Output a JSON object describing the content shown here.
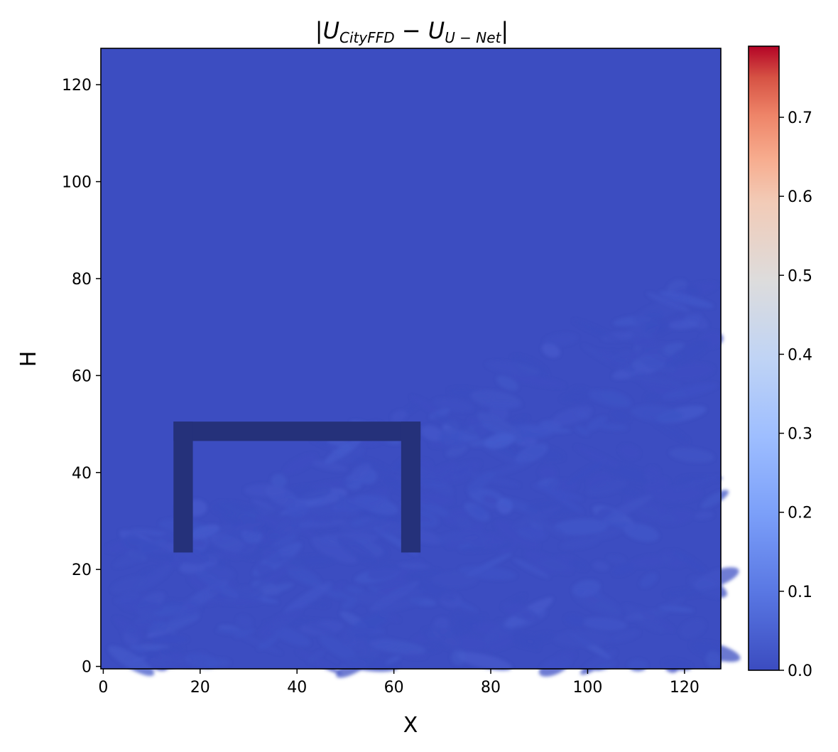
{
  "chart_data": {
    "type": "heatmap",
    "title": {
      "bar_left": "|",
      "u1": "U",
      "sub1": "CityFFD",
      "minus": " − ",
      "u2": "U",
      "sub2": "U − Net",
      "bar_right": "|"
    },
    "xlabel": "X",
    "ylabel": "H",
    "xlim": [
      -0.5,
      127.5
    ],
    "ylim": [
      -0.5,
      127.5
    ],
    "grid": false,
    "colormap": "coolwarm",
    "field_value_range": [
      0.0,
      0.04
    ],
    "obstacle": {
      "shape": "open-bottom rectangle",
      "x_range": [
        15,
        65
      ],
      "y_range": [
        24,
        50
      ],
      "wall_thickness": 3,
      "color": "#25317a"
    },
    "x_ticks": [
      {
        "value": 0,
        "label": "0"
      },
      {
        "value": 20,
        "label": "20"
      },
      {
        "value": 40,
        "label": "40"
      },
      {
        "value": 60,
        "label": "60"
      },
      {
        "value": 80,
        "label": "80"
      },
      {
        "value": 100,
        "label": "100"
      },
      {
        "value": 120,
        "label": "120"
      }
    ],
    "y_ticks": [
      {
        "value": 0,
        "label": "0"
      },
      {
        "value": 20,
        "label": "20"
      },
      {
        "value": 40,
        "label": "40"
      },
      {
        "value": 60,
        "label": "60"
      },
      {
        "value": 80,
        "label": "80"
      },
      {
        "value": 100,
        "label": "100"
      },
      {
        "value": 120,
        "label": "120"
      }
    ],
    "colorbar": {
      "range": [
        0.0,
        0.79
      ],
      "ticks": [
        {
          "value": 0.0,
          "label": "0.0"
        },
        {
          "value": 0.1,
          "label": "0.1"
        },
        {
          "value": 0.2,
          "label": "0.2"
        },
        {
          "value": 0.3,
          "label": "0.3"
        },
        {
          "value": 0.4,
          "label": "0.4"
        },
        {
          "value": 0.5,
          "label": "0.5"
        },
        {
          "value": 0.6,
          "label": "0.6"
        },
        {
          "value": 0.7,
          "label": "0.7"
        }
      ]
    }
  }
}
